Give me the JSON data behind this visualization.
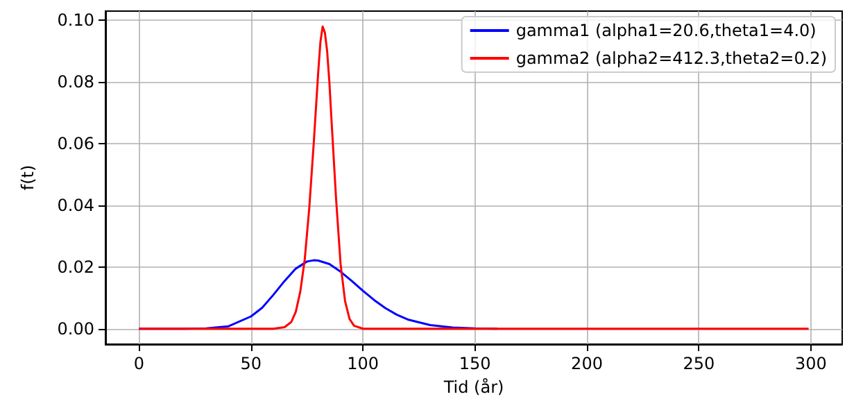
{
  "chart_data": {
    "type": "line",
    "xlabel": "Tid (år)",
    "ylabel": "f(t)",
    "xlim": [
      -15,
      314
    ],
    "xticks": [
      0,
      50,
      100,
      150,
      200,
      250,
      300
    ],
    "ylim": [
      -0.005,
      0.103
    ],
    "yticks": [
      {
        "value": 0,
        "label": "0.00"
      },
      {
        "value": 0.02,
        "label": "0.02"
      },
      {
        "value": 0.04,
        "label": "0.04"
      },
      {
        "value": 0.06,
        "label": "0.06"
      },
      {
        "value": 0.08,
        "label": "0.08"
      },
      {
        "value": 0.1,
        "label": "0.10"
      }
    ],
    "grid": true,
    "legend": "top right",
    "marker": "none",
    "line_style": "solid",
    "series": [
      {
        "name": "gamma1 (alpha1=20.6,theta1=4.0)",
        "color": "#0000ff",
        "x": [
          0,
          20,
          30,
          40,
          50,
          55,
          60,
          65,
          70,
          75,
          78,
          80,
          85,
          90,
          95,
          100,
          105,
          110,
          115,
          120,
          130,
          140,
          150,
          160
        ],
        "values": [
          0,
          0,
          0.0001,
          0.0008,
          0.004,
          0.0068,
          0.011,
          0.0155,
          0.0195,
          0.0218,
          0.0222,
          0.0221,
          0.021,
          0.0185,
          0.0155,
          0.0123,
          0.0093,
          0.0067,
          0.0046,
          0.003,
          0.0012,
          0.0004,
          0.0001,
          0
        ]
      },
      {
        "name": "gamma2 (alpha2=412.3,theta2=0.2)",
        "color": "#ff0000",
        "x": [
          0,
          60,
          65,
          68,
          70,
          72,
          74,
          76,
          78,
          80,
          81,
          82,
          83,
          84,
          85,
          86,
          88,
          90,
          92,
          94,
          96,
          100,
          299
        ],
        "values": [
          0,
          0,
          0.0005,
          0.0022,
          0.0055,
          0.012,
          0.0225,
          0.039,
          0.06,
          0.083,
          0.093,
          0.098,
          0.096,
          0.09,
          0.08,
          0.067,
          0.042,
          0.021,
          0.009,
          0.0032,
          0.001,
          0,
          0
        ]
      }
    ]
  }
}
